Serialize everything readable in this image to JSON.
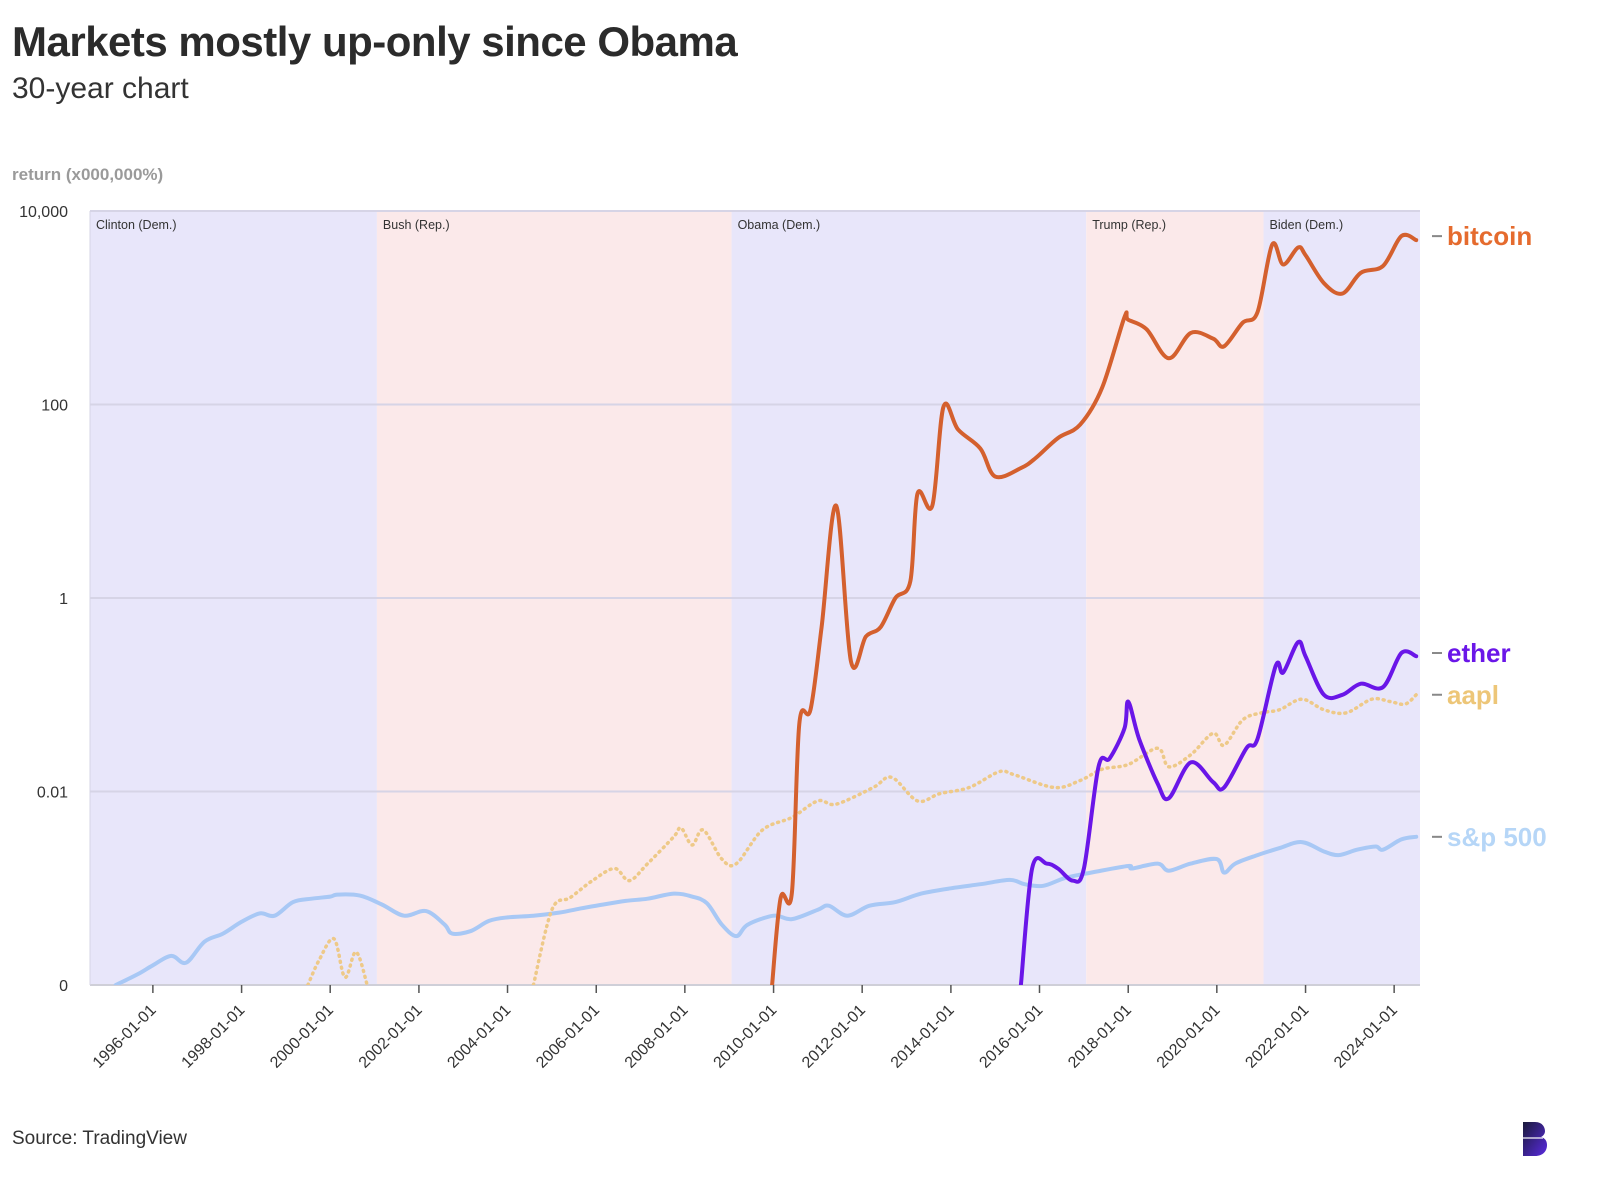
{
  "title": "Markets mostly up-only since Obama",
  "subtitle": "30-year chart",
  "source": "Source: TradingView",
  "chart_data": {
    "type": "line",
    "title": "Markets mostly up-only since Obama",
    "subtitle": "30-year chart",
    "ylabel": "return (x000,000%)",
    "yscale": "log",
    "ylim": [
      0.0001,
      10000
    ],
    "yticks": [
      {
        "value": 10000,
        "label": "10,000"
      },
      {
        "value": 100,
        "label": "100"
      },
      {
        "value": 1,
        "label": "1"
      },
      {
        "value": 0.01,
        "label": "0.01"
      },
      {
        "value": 0.0001,
        "label": "0"
      }
    ],
    "xlim": [
      "1994-08-01",
      "2024-08-01"
    ],
    "xticks": [
      "1996-01-01",
      "1998-01-01",
      "2000-01-01",
      "2002-01-01",
      "2004-01-01",
      "2006-01-01",
      "2008-01-01",
      "2010-01-01",
      "2012-01-01",
      "2014-01-01",
      "2016-01-01",
      "2018-01-01",
      "2020-01-01",
      "2022-01-01",
      "2024-01-01"
    ],
    "grid": true,
    "eras": [
      {
        "label": "Clinton (Dem.)",
        "start": "1994-08-01",
        "end": "2001-01-20",
        "party": "dem",
        "color": "#e8e6fa"
      },
      {
        "label": "Bush (Rep.)",
        "start": "2001-01-20",
        "end": "2009-01-20",
        "party": "rep",
        "color": "#fbe9ea"
      },
      {
        "label": "Obama (Dem.)",
        "start": "2009-01-20",
        "end": "2017-01-20",
        "party": "dem",
        "color": "#e8e6fa"
      },
      {
        "label": "Trump (Rep.)",
        "start": "2017-01-20",
        "end": "2021-01-20",
        "party": "rep",
        "color": "#fbe9ea"
      },
      {
        "label": "Biden (Dem.)",
        "start": "2021-01-20",
        "end": "2024-08-01",
        "party": "dem",
        "color": "#e8e6fa"
      }
    ],
    "series": [
      {
        "name": "s&p 500",
        "color": "#a8c8f5",
        "style": "solid",
        "points": [
          [
            "1995-03-01",
            8e-05
          ],
          [
            "1995-09-01",
            0.00013
          ],
          [
            "1996-01-01",
            0.00016
          ],
          [
            "1996-06-01",
            0.0002
          ],
          [
            "1996-10-01",
            0.00017
          ],
          [
            "1997-03-01",
            0.00028
          ],
          [
            "1997-08-01",
            0.00034
          ],
          [
            "1998-01-01",
            0.00045
          ],
          [
            "1998-06-01",
            0.00055
          ],
          [
            "1998-10-01",
            0.00052
          ],
          [
            "1999-03-01",
            0.00072
          ],
          [
            "1999-08-01",
            0.00078
          ],
          [
            "2000-01-01",
            0.00082
          ],
          [
            "2000-03-01",
            0.00086
          ],
          [
            "2000-09-01",
            0.00084
          ],
          [
            "2001-03-01",
            0.00068
          ],
          [
            "2001-09-01",
            0.00052
          ],
          [
            "2002-03-01",
            0.00058
          ],
          [
            "2002-08-01",
            0.00042
          ],
          [
            "2002-10-01",
            0.00034
          ],
          [
            "2003-03-01",
            0.00036
          ],
          [
            "2003-08-01",
            0.00046
          ],
          [
            "2004-01-01",
            0.0005
          ],
          [
            "2004-08-01",
            0.00052
          ],
          [
            "2005-03-01",
            0.00056
          ],
          [
            "2005-09-01",
            0.00062
          ],
          [
            "2006-03-01",
            0.00068
          ],
          [
            "2006-09-01",
            0.00074
          ],
          [
            "2007-03-01",
            0.00078
          ],
          [
            "2007-10-01",
            0.00088
          ],
          [
            "2008-03-01",
            0.00082
          ],
          [
            "2008-07-01",
            0.0007
          ],
          [
            "2008-11-01",
            0.00042
          ],
          [
            "2009-03-01",
            0.00032
          ],
          [
            "2009-06-01",
            0.00042
          ],
          [
            "2010-01-01",
            0.00052
          ],
          [
            "2010-06-01",
            0.00048
          ],
          [
            "2011-01-01",
            0.0006
          ],
          [
            "2011-04-01",
            0.00066
          ],
          [
            "2011-09-01",
            0.00052
          ],
          [
            "2012-03-01",
            0.00066
          ],
          [
            "2012-10-01",
            0.00072
          ],
          [
            "2013-05-01",
            0.00088
          ],
          [
            "2014-01-01",
            0.001
          ],
          [
            "2014-09-01",
            0.0011
          ],
          [
            "2015-05-01",
            0.00122
          ],
          [
            "2015-09-01",
            0.0011
          ],
          [
            "2016-02-01",
            0.00106
          ],
          [
            "2016-08-01",
            0.00128
          ],
          [
            "2017-03-01",
            0.00145
          ],
          [
            "2018-01-01",
            0.0017
          ],
          [
            "2018-02-01",
            0.0016
          ],
          [
            "2018-09-01",
            0.0018
          ],
          [
            "2018-12-01",
            0.00152
          ],
          [
            "2019-06-01",
            0.0018
          ],
          [
            "2020-01-01",
            0.002
          ],
          [
            "2020-03-01",
            0.00145
          ],
          [
            "2020-06-01",
            0.0018
          ],
          [
            "2020-12-01",
            0.0022
          ],
          [
            "2021-06-01",
            0.0026
          ],
          [
            "2021-12-01",
            0.003
          ],
          [
            "2022-06-01",
            0.0024
          ],
          [
            "2022-10-01",
            0.0022
          ],
          [
            "2023-03-01",
            0.0025
          ],
          [
            "2023-08-01",
            0.0027
          ],
          [
            "2023-10-01",
            0.0025
          ],
          [
            "2024-03-01",
            0.0032
          ],
          [
            "2024-07-01",
            0.0034
          ]
        ]
      },
      {
        "name": "aapl",
        "color": "#eec988",
        "style": "dotted",
        "points": [
          [
            "1999-07-01",
            0.0001
          ],
          [
            "1999-10-01",
            0.00018
          ],
          [
            "2000-02-01",
            0.0003
          ],
          [
            "2000-05-01",
            0.00012
          ],
          [
            "2000-08-01",
            0.00022
          ],
          [
            "2000-11-01",
            0.0001
          ]
        ],
        "points_b": [
          [
            "2004-08-01",
            0.0001
          ],
          [
            "2005-01-01",
            0.0006
          ],
          [
            "2005-06-01",
            0.0008
          ],
          [
            "2005-12-01",
            0.0012
          ],
          [
            "2006-06-01",
            0.0016
          ],
          [
            "2006-10-01",
            0.0012
          ],
          [
            "2007-03-01",
            0.0018
          ],
          [
            "2007-10-01",
            0.0034
          ],
          [
            "2007-12-01",
            0.0042
          ],
          [
            "2008-03-01",
            0.0028
          ],
          [
            "2008-06-01",
            0.004
          ],
          [
            "2008-11-01",
            0.002
          ],
          [
            "2009-03-01",
            0.0018
          ],
          [
            "2009-10-01",
            0.004
          ],
          [
            "2010-06-01",
            0.0054
          ],
          [
            "2011-01-01",
            0.008
          ],
          [
            "2011-06-01",
            0.0074
          ],
          [
            "2012-04-01",
            0.011
          ],
          [
            "2012-09-01",
            0.014
          ],
          [
            "2013-04-01",
            0.008
          ],
          [
            "2013-10-01",
            0.0095
          ],
          [
            "2014-06-01",
            0.011
          ],
          [
            "2015-02-01",
            0.016
          ],
          [
            "2015-06-01",
            0.015
          ],
          [
            "2016-05-01",
            0.011
          ],
          [
            "2016-12-01",
            0.013
          ],
          [
            "2017-06-01",
            0.017
          ],
          [
            "2018-01-01",
            0.019
          ],
          [
            "2018-09-01",
            0.028
          ],
          [
            "2018-12-01",
            0.018
          ],
          [
            "2019-06-01",
            0.024
          ],
          [
            "2019-12-01",
            0.04
          ],
          [
            "2020-03-01",
            0.03
          ],
          [
            "2020-08-01",
            0.055
          ],
          [
            "2021-01-01",
            0.065
          ],
          [
            "2021-06-01",
            0.07
          ],
          [
            "2021-12-01",
            0.09
          ],
          [
            "2022-06-01",
            0.07
          ],
          [
            "2022-12-01",
            0.065
          ],
          [
            "2023-07-01",
            0.09
          ],
          [
            "2023-12-01",
            0.085
          ],
          [
            "2024-04-01",
            0.08
          ],
          [
            "2024-07-01",
            0.1
          ]
        ]
      },
      {
        "name": "ether",
        "color": "#6a16e8",
        "style": "solid",
        "points": [
          [
            "2015-08-01",
            0.0001
          ],
          [
            "2015-11-01",
            0.0016
          ],
          [
            "2016-03-01",
            0.0018
          ],
          [
            "2016-06-01",
            0.0016
          ],
          [
            "2016-10-01",
            0.0012
          ],
          [
            "2017-01-01",
            0.0016
          ],
          [
            "2017-05-01",
            0.018
          ],
          [
            "2017-08-01",
            0.022
          ],
          [
            "2017-12-01",
            0.045
          ],
          [
            "2018-01-01",
            0.085
          ],
          [
            "2018-04-01",
            0.035
          ],
          [
            "2018-09-01",
            0.012
          ],
          [
            "2018-12-01",
            0.0085
          ],
          [
            "2019-06-01",
            0.02
          ],
          [
            "2019-12-01",
            0.0125
          ],
          [
            "2020-03-01",
            0.011
          ],
          [
            "2020-09-01",
            0.028
          ],
          [
            "2020-12-01",
            0.035
          ],
          [
            "2021-05-01",
            0.2
          ],
          [
            "2021-07-01",
            0.17
          ],
          [
            "2021-11-01",
            0.35
          ],
          [
            "2022-01-01",
            0.25
          ],
          [
            "2022-06-01",
            0.1
          ],
          [
            "2022-11-01",
            0.1
          ],
          [
            "2023-04-01",
            0.13
          ],
          [
            "2023-10-01",
            0.12
          ],
          [
            "2024-03-01",
            0.27
          ],
          [
            "2024-07-01",
            0.25
          ]
        ]
      },
      {
        "name": "bitcoin",
        "color": "#d4602e",
        "style": "solid",
        "points": [
          [
            "2009-12-20",
            0.0001
          ],
          [
            "2010-03-01",
            0.0008
          ],
          [
            "2010-06-01",
            0.0009
          ],
          [
            "2010-08-01",
            0.05
          ],
          [
            "2010-11-01",
            0.07
          ],
          [
            "2011-02-01",
            0.5
          ],
          [
            "2011-06-01",
            9
          ],
          [
            "2011-10-01",
            0.22
          ],
          [
            "2012-02-01",
            0.4
          ],
          [
            "2012-06-01",
            0.5
          ],
          [
            "2012-10-01",
            1.0
          ],
          [
            "2013-02-01",
            1.5
          ],
          [
            "2013-04-01",
            12
          ],
          [
            "2013-08-01",
            9
          ],
          [
            "2013-11-01",
            95
          ],
          [
            "2014-03-01",
            55
          ],
          [
            "2014-09-01",
            35
          ],
          [
            "2015-01-01",
            18
          ],
          [
            "2015-08-01",
            22
          ],
          [
            "2015-12-01",
            28
          ],
          [
            "2016-06-01",
            45
          ],
          [
            "2016-12-01",
            62
          ],
          [
            "2017-06-01",
            150
          ],
          [
            "2017-12-01",
            800
          ],
          [
            "2018-01-01",
            750
          ],
          [
            "2018-06-01",
            600
          ],
          [
            "2018-12-01",
            300
          ],
          [
            "2019-06-01",
            550
          ],
          [
            "2019-12-01",
            480
          ],
          [
            "2020-03-01",
            400
          ],
          [
            "2020-08-01",
            700
          ],
          [
            "2020-12-01",
            900
          ],
          [
            "2021-04-01",
            4500
          ],
          [
            "2021-07-01",
            2800
          ],
          [
            "2021-11-01",
            4200
          ],
          [
            "2022-01-01",
            3500
          ],
          [
            "2022-06-01",
            1800
          ],
          [
            "2022-11-01",
            1400
          ],
          [
            "2023-04-01",
            2300
          ],
          [
            "2023-10-01",
            2700
          ],
          [
            "2024-03-01",
            5500
          ],
          [
            "2024-07-01",
            5000
          ]
        ]
      }
    ],
    "end_labels": [
      {
        "name": "bitcoin",
        "text": "bitcoin",
        "color": "#e56b2e"
      },
      {
        "name": "ether",
        "text": "ether",
        "color": "#6a16e8"
      },
      {
        "name": "aapl",
        "text": "aapl",
        "color": "#edc678"
      },
      {
        "name": "sp500",
        "text": "s&p 500",
        "color": "#b6d6f7"
      }
    ]
  }
}
